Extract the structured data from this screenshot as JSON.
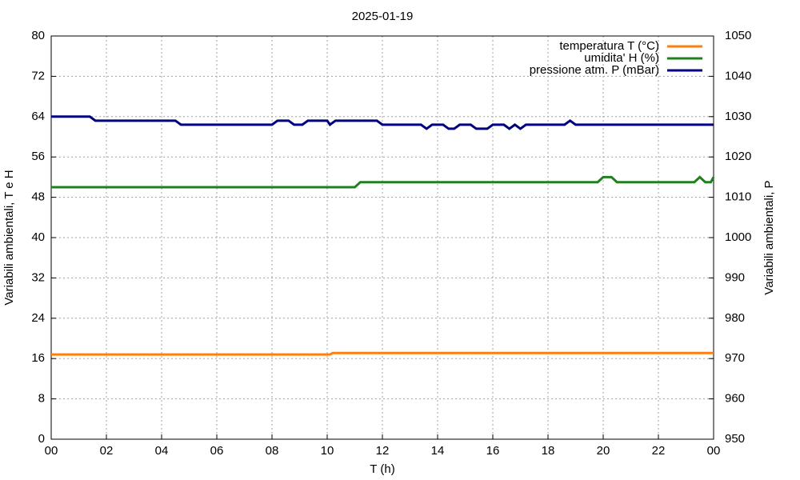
{
  "chart_data": {
    "type": "line",
    "title": "2025-01-19",
    "x_label": "T (h)",
    "y_label": "Variabili ambientali, T e H",
    "y2_label": "Variabili ambientali, P",
    "xlim": [
      0,
      24
    ],
    "xticks": [
      {
        "value": 0,
        "label": "00"
      },
      {
        "value": 2,
        "label": "02"
      },
      {
        "value": 4,
        "label": "04"
      },
      {
        "value": 6,
        "label": "06"
      },
      {
        "value": 8,
        "label": "08"
      },
      10,
      12,
      14,
      16,
      18,
      20,
      22,
      {
        "value": 24,
        "label": "00"
      }
    ],
    "ylim": [
      0,
      80
    ],
    "yticks": [
      0,
      8,
      16,
      24,
      32,
      40,
      48,
      56,
      64,
      72,
      80
    ],
    "y2lim": [
      950,
      1050
    ],
    "y2ticks": [
      950,
      960,
      970,
      980,
      990,
      1000,
      1010,
      1020,
      1030,
      1040,
      1050
    ],
    "grid": true,
    "legend": "top-right",
    "series": [
      {
        "name": "temperatura T (°C)",
        "color": "#ff7f0e",
        "x": [
          0,
          10.1,
          10.2,
          24
        ],
        "values": [
          16.8,
          16.8,
          17.1,
          17.1
        ]
      },
      {
        "name": "umidita' H (%)",
        "color": "#208020",
        "x": [
          0,
          11.0,
          11.2,
          19.8,
          20.0,
          20.3,
          20.5,
          23.3,
          23.5,
          23.7,
          23.9,
          24.0
        ],
        "values": [
          50,
          50,
          51,
          51,
          52,
          52,
          51,
          51,
          52,
          51,
          51,
          52
        ]
      },
      {
        "name": "pressione atm. P (mBar)",
        "color": "#000080",
        "axis": "y2",
        "x": [
          0,
          1.4,
          1.6,
          4.5,
          4.7,
          8.0,
          8.2,
          8.6,
          8.8,
          9.1,
          9.3,
          10.0,
          10.1,
          10.3,
          11.8,
          12.0,
          13.4,
          13.6,
          13.8,
          14.2,
          14.4,
          14.6,
          14.8,
          15.2,
          15.4,
          15.8,
          16.0,
          16.4,
          16.6,
          16.8,
          17.0,
          17.2,
          18.6,
          18.8,
          19.0,
          24
        ],
        "values": [
          1030,
          1030,
          1029,
          1029,
          1028,
          1028,
          1029,
          1029,
          1028,
          1028,
          1029,
          1029,
          1028,
          1029,
          1029,
          1028,
          1028,
          1027,
          1028,
          1028,
          1027,
          1027,
          1028,
          1028,
          1027,
          1027,
          1028,
          1028,
          1027,
          1028,
          1027,
          1028,
          1028,
          1029,
          1028,
          1028
        ]
      }
    ]
  }
}
